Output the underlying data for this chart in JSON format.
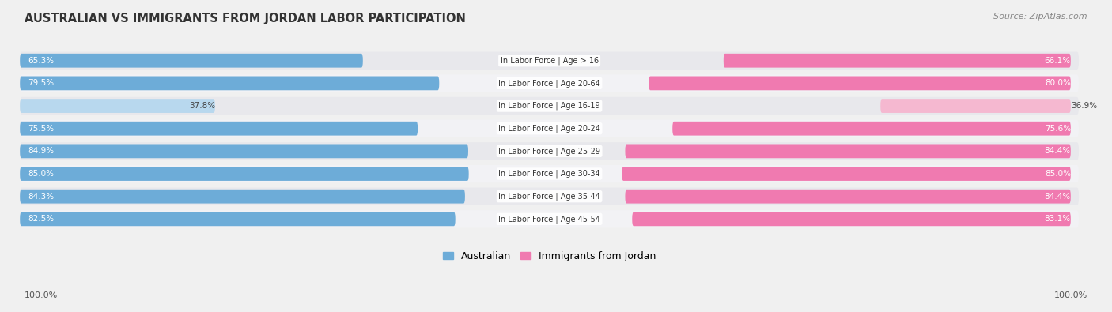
{
  "title": "AUSTRALIAN VS IMMIGRANTS FROM JORDAN LABOR PARTICIPATION",
  "source": "Source: ZipAtlas.com",
  "categories": [
    "In Labor Force | Age > 16",
    "In Labor Force | Age 20-64",
    "In Labor Force | Age 16-19",
    "In Labor Force | Age 20-24",
    "In Labor Force | Age 25-29",
    "In Labor Force | Age 30-34",
    "In Labor Force | Age 35-44",
    "In Labor Force | Age 45-54"
  ],
  "australian_values": [
    65.3,
    79.5,
    37.8,
    75.5,
    84.9,
    85.0,
    84.3,
    82.5
  ],
  "jordan_values": [
    66.1,
    80.0,
    36.9,
    75.6,
    84.4,
    85.0,
    84.4,
    83.1
  ],
  "australian_color": "#6dacd8",
  "jordan_color": "#f07ab0",
  "australian_color_light": "#b8d8ee",
  "jordan_color_light": "#f5b8d0",
  "bar_height": 0.62,
  "row_bg_color": "#e8e8ec",
  "row_bg_color_alt": "#f2f2f5",
  "background_color": "#f0f0f0",
  "label_fontsize": 7.0,
  "value_fontsize": 7.5,
  "title_fontsize": 10.5,
  "source_fontsize": 8.0,
  "legend_labels": [
    "Australian",
    "Immigrants from Jordan"
  ],
  "footer_text": "100.0%",
  "axis_max": 100.0
}
